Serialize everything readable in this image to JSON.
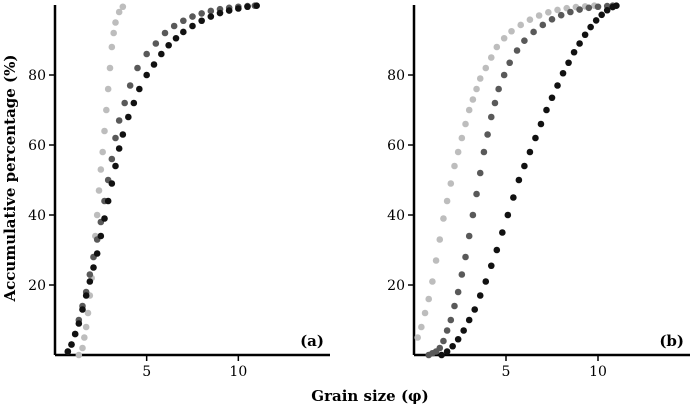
{
  "figure": {
    "ylabel": "Accumulative percentage (%)",
    "xlabel": "Grain size (φ)",
    "series_colors": [
      "#bdbdbd",
      "#595959",
      "#111111"
    ]
  },
  "chart_data": [
    {
      "type": "scatter",
      "panel_label": "(a)",
      "xlim": [
        0,
        15
      ],
      "ylim": [
        0,
        100
      ],
      "xticks": [
        5,
        10
      ],
      "yticks": [
        20,
        40,
        60,
        80
      ],
      "grid": false,
      "series": [
        {
          "color": "#bdbdbd",
          "points": [
            [
              1.3,
              0
            ],
            [
              1.5,
              2
            ],
            [
              1.6,
              5
            ],
            [
              1.7,
              8
            ],
            [
              1.8,
              12
            ],
            [
              1.9,
              17
            ],
            [
              2.0,
              22
            ],
            [
              2.1,
              28
            ],
            [
              2.2,
              34
            ],
            [
              2.3,
              40
            ],
            [
              2.4,
              47
            ],
            [
              2.5,
              53
            ],
            [
              2.6,
              58
            ],
            [
              2.7,
              64
            ],
            [
              2.8,
              70
            ],
            [
              2.9,
              76
            ],
            [
              3.0,
              82
            ],
            [
              3.1,
              88
            ],
            [
              3.2,
              92
            ],
            [
              3.3,
              95
            ],
            [
              3.5,
              98
            ],
            [
              3.7,
              99.5
            ]
          ]
        },
        {
          "color": "#595959",
          "points": [
            [
              0.7,
              1
            ],
            [
              0.9,
              3
            ],
            [
              1.1,
              6
            ],
            [
              1.3,
              10
            ],
            [
              1.5,
              14
            ],
            [
              1.7,
              18
            ],
            [
              1.9,
              23
            ],
            [
              2.1,
              28
            ],
            [
              2.3,
              33
            ],
            [
              2.5,
              38
            ],
            [
              2.7,
              44
            ],
            [
              2.9,
              50
            ],
            [
              3.1,
              56
            ],
            [
              3.3,
              62
            ],
            [
              3.5,
              67
            ],
            [
              3.8,
              72
            ],
            [
              4.1,
              77
            ],
            [
              4.5,
              82
            ],
            [
              5.0,
              86
            ],
            [
              5.5,
              89
            ],
            [
              6.0,
              92
            ],
            [
              6.5,
              94
            ],
            [
              7.0,
              95.5
            ],
            [
              7.5,
              96.7
            ],
            [
              8.0,
              97.6
            ],
            [
              8.5,
              98.3
            ],
            [
              9.0,
              98.8
            ],
            [
              9.5,
              99.2
            ],
            [
              10.0,
              99.5
            ],
            [
              10.5,
              99.7
            ],
            [
              10.9,
              99.8
            ]
          ]
        },
        {
          "color": "#111111",
          "points": [
            [
              0.7,
              1
            ],
            [
              0.9,
              3
            ],
            [
              1.1,
              6
            ],
            [
              1.3,
              9
            ],
            [
              1.5,
              13
            ],
            [
              1.7,
              17
            ],
            [
              1.9,
              21
            ],
            [
              2.1,
              25
            ],
            [
              2.3,
              29
            ],
            [
              2.5,
              34
            ],
            [
              2.7,
              39
            ],
            [
              2.9,
              44
            ],
            [
              3.1,
              49
            ],
            [
              3.3,
              54
            ],
            [
              3.5,
              59
            ],
            [
              3.7,
              63
            ],
            [
              4.0,
              68
            ],
            [
              4.3,
              72
            ],
            [
              4.6,
              76
            ],
            [
              5.0,
              80
            ],
            [
              5.4,
              83
            ],
            [
              5.8,
              86
            ],
            [
              6.2,
              88.5
            ],
            [
              6.6,
              90.5
            ],
            [
              7.0,
              92.3
            ],
            [
              7.5,
              94
            ],
            [
              8.0,
              95.5
            ],
            [
              8.5,
              96.7
            ],
            [
              9.0,
              97.7
            ],
            [
              9.5,
              98.4
            ],
            [
              10.0,
              99
            ],
            [
              10.5,
              99.5
            ],
            [
              11.0,
              99.8
            ]
          ]
        }
      ]
    },
    {
      "type": "scatter",
      "panel_label": "(b)",
      "xlim": [
        0,
        15
      ],
      "ylim": [
        0,
        100
      ],
      "xticks": [
        5,
        10
      ],
      "yticks": [
        20,
        40,
        60,
        80
      ],
      "grid": false,
      "series": [
        {
          "color": "#bdbdbd",
          "points": [
            [
              0.2,
              5
            ],
            [
              0.4,
              8
            ],
            [
              0.6,
              12
            ],
            [
              0.8,
              16
            ],
            [
              1.0,
              21
            ],
            [
              1.2,
              27
            ],
            [
              1.4,
              33
            ],
            [
              1.6,
              39
            ],
            [
              1.8,
              44
            ],
            [
              2.0,
              49
            ],
            [
              2.2,
              54
            ],
            [
              2.4,
              58
            ],
            [
              2.6,
              62
            ],
            [
              2.8,
              66
            ],
            [
              3.0,
              70
            ],
            [
              3.2,
              73
            ],
            [
              3.4,
              76
            ],
            [
              3.6,
              79
            ],
            [
              3.9,
              82
            ],
            [
              4.2,
              85
            ],
            [
              4.5,
              88
            ],
            [
              4.9,
              90.5
            ],
            [
              5.3,
              92.5
            ],
            [
              5.8,
              94.3
            ],
            [
              6.3,
              95.8
            ],
            [
              6.8,
              97
            ],
            [
              7.3,
              97.9
            ],
            [
              7.8,
              98.6
            ],
            [
              8.3,
              99.1
            ],
            [
              8.8,
              99.4
            ],
            [
              9.3,
              99.6
            ],
            [
              9.8,
              99.8
            ]
          ]
        },
        {
          "color": "#595959",
          "points": [
            [
              0.8,
              0
            ],
            [
              1.0,
              0.5
            ],
            [
              1.2,
              1
            ],
            [
              1.4,
              2
            ],
            [
              1.6,
              4
            ],
            [
              1.8,
              7
            ],
            [
              2.0,
              10
            ],
            [
              2.2,
              14
            ],
            [
              2.4,
              18
            ],
            [
              2.6,
              23
            ],
            [
              2.8,
              28
            ],
            [
              3.0,
              34
            ],
            [
              3.2,
              40
            ],
            [
              3.4,
              46
            ],
            [
              3.6,
              52
            ],
            [
              3.8,
              58
            ],
            [
              4.0,
              63
            ],
            [
              4.2,
              68
            ],
            [
              4.4,
              72
            ],
            [
              4.6,
              76
            ],
            [
              4.9,
              80
            ],
            [
              5.2,
              83.5
            ],
            [
              5.6,
              87
            ],
            [
              6.0,
              89.8
            ],
            [
              6.5,
              92.3
            ],
            [
              7.0,
              94.3
            ],
            [
              7.5,
              95.9
            ],
            [
              8.0,
              97.1
            ],
            [
              8.5,
              98
            ],
            [
              9.0,
              98.7
            ],
            [
              9.5,
              99.2
            ],
            [
              10.0,
              99.5
            ],
            [
              10.5,
              99.7
            ],
            [
              10.8,
              99.8
            ]
          ]
        },
        {
          "color": "#111111",
          "points": [
            [
              1.5,
              0
            ],
            [
              1.8,
              1
            ],
            [
              2.1,
              2.5
            ],
            [
              2.4,
              4.5
            ],
            [
              2.7,
              7
            ],
            [
              3.0,
              10
            ],
            [
              3.3,
              13
            ],
            [
              3.6,
              17
            ],
            [
              3.9,
              21
            ],
            [
              4.2,
              25.5
            ],
            [
              4.5,
              30
            ],
            [
              4.8,
              35
            ],
            [
              5.1,
              40
            ],
            [
              5.4,
              45
            ],
            [
              5.7,
              50
            ],
            [
              6.0,
              54
            ],
            [
              6.3,
              58
            ],
            [
              6.6,
              62
            ],
            [
              6.9,
              66
            ],
            [
              7.2,
              70
            ],
            [
              7.5,
              73.5
            ],
            [
              7.8,
              77
            ],
            [
              8.1,
              80.5
            ],
            [
              8.4,
              83.5
            ],
            [
              8.7,
              86.5
            ],
            [
              9.0,
              89
            ],
            [
              9.3,
              91.5
            ],
            [
              9.6,
              93.7
            ],
            [
              9.9,
              95.6
            ],
            [
              10.2,
              97.2
            ],
            [
              10.5,
              98.5
            ],
            [
              10.8,
              99.4
            ],
            [
              11.0,
              99.8
            ]
          ]
        }
      ]
    }
  ]
}
